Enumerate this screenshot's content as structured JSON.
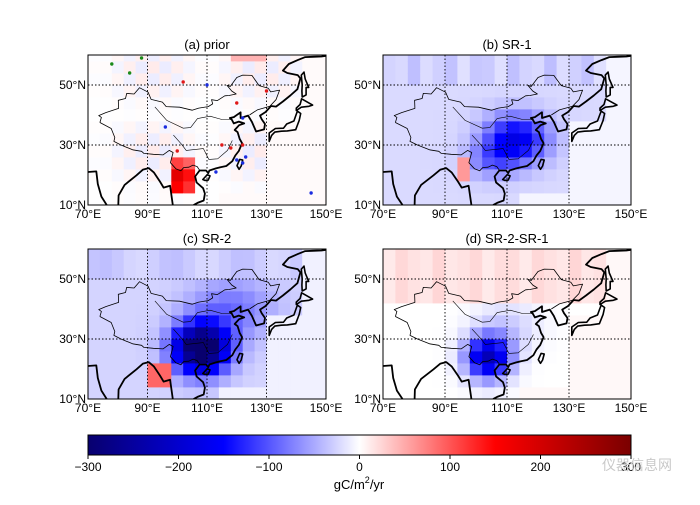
{
  "chart_data": [
    {
      "type": "heatmap",
      "title": "(a) prior",
      "x_tick_labels": [
        "70°E",
        "90°E",
        "110°E",
        "130°E",
        "150°E"
      ],
      "y_tick_labels": [
        "50°N",
        "30°N",
        "10°N"
      ],
      "xlim": [
        70,
        150
      ],
      "ylim": [
        10,
        60
      ],
      "grid": "dotted",
      "pattern": "prior",
      "site_markers": {
        "green": [
          [
            78,
            57
          ],
          [
            84,
            54
          ],
          [
            88,
            59
          ]
        ],
        "red": [
          [
            102,
            51
          ],
          [
            120,
            44
          ],
          [
            130,
            48
          ],
          [
            100,
            28
          ],
          [
            115,
            30
          ],
          [
            118,
            29
          ],
          [
            122,
            30
          ]
        ],
        "blue": [
          [
            110,
            50
          ],
          [
            96,
            36
          ],
          [
            122,
            39
          ],
          [
            113,
            21
          ],
          [
            120,
            25
          ],
          [
            122,
            24
          ],
          [
            123,
            26
          ],
          [
            145,
            14
          ]
        ]
      }
    },
    {
      "type": "heatmap",
      "title": "(b) SR-1",
      "x_tick_labels": [
        "70°E",
        "90°E",
        "110°E",
        "130°E",
        "150°E"
      ],
      "y_tick_labels": [
        "50°N",
        "30°N",
        "10°N"
      ],
      "xlim": [
        70,
        150
      ],
      "ylim": [
        10,
        60
      ],
      "grid": "dotted",
      "pattern": "sr1"
    },
    {
      "type": "heatmap",
      "title": "(c) SR-2",
      "x_tick_labels": [
        "70°E",
        "90°E",
        "110°E",
        "130°E",
        "150°E"
      ],
      "y_tick_labels": [
        "50°N",
        "30°N",
        "10°N"
      ],
      "xlim": [
        70,
        150
      ],
      "ylim": [
        10,
        60
      ],
      "grid": "dotted",
      "pattern": "sr2"
    },
    {
      "type": "heatmap",
      "title": "(d) SR-2-SR-1",
      "x_tick_labels": [
        "70°E",
        "90°E",
        "110°E",
        "130°E",
        "150°E"
      ],
      "y_tick_labels": [
        "50°N",
        "30°N",
        "10°N"
      ],
      "xlim": [
        70,
        150
      ],
      "ylim": [
        10,
        60
      ],
      "grid": "dotted",
      "pattern": "diff"
    }
  ],
  "colorbar": {
    "vmin": -300,
    "vmax": 300,
    "tick_values": [
      -300,
      -200,
      -100,
      0,
      100,
      200,
      300
    ],
    "tick_labels": [
      "−300",
      "−200",
      "−100",
      "0",
      "100",
      "200",
      "300"
    ],
    "colormap": "seismic",
    "colors": [
      "#08006e",
      "#0000ff",
      "#ffffff",
      "#ff0000",
      "#7a0000"
    ],
    "unit_label": "gC/m²/yr",
    "unit_label_parts": [
      "gC/m",
      "2",
      "/yr"
    ]
  },
  "watermark": "仪器信息网"
}
